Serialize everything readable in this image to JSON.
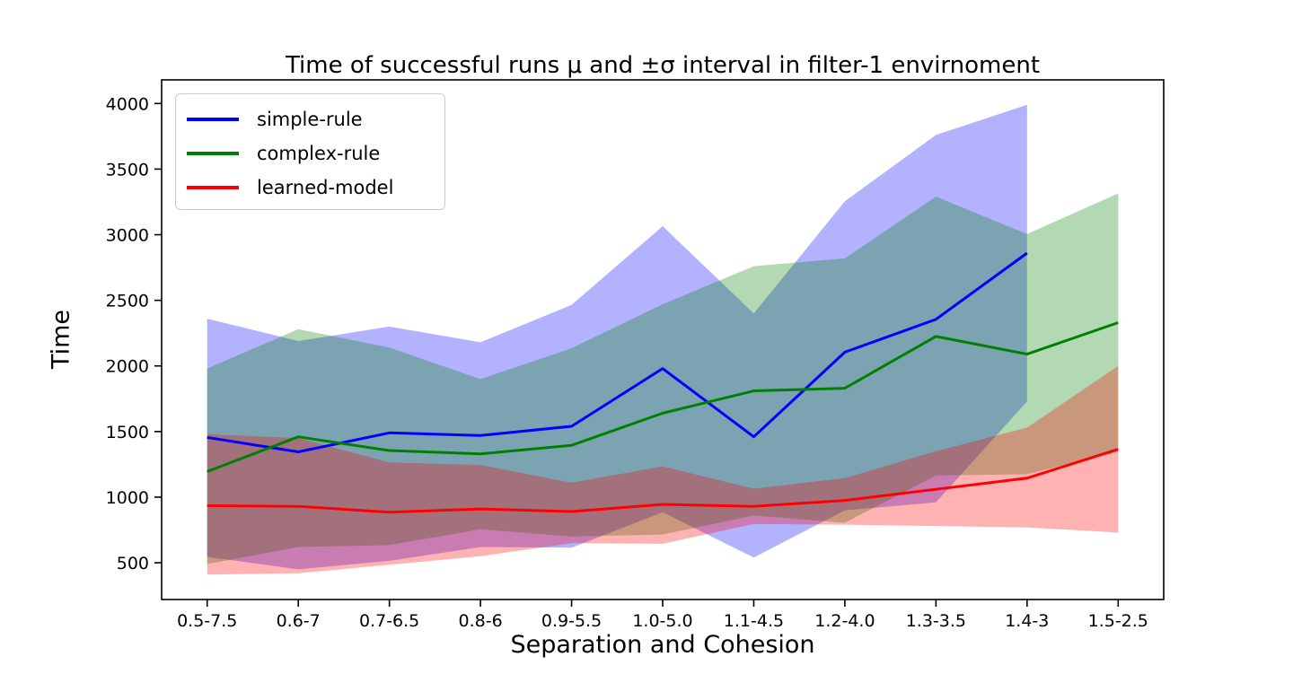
{
  "figure": {
    "title": "Time of successful runs μ and ±σ interval in filter-1 envirnoment",
    "xlabel": "Separation and Cohesion",
    "ylabel": "Time"
  },
  "chart_data": {
    "type": "line",
    "title": "Time of successful runs μ and ±σ interval in filter-1 envirnoment",
    "xlabel": "Separation and Cohesion",
    "ylabel": "Time",
    "categories": [
      "0.5-7.5",
      "0.6-7",
      "0.7-6.5",
      "0.8-6",
      "0.9-5.5",
      "1.0-5.0",
      "1.1-4.5",
      "1.2-4.0",
      "1.3-3.5",
      "1.4-3",
      "1.5-2.5"
    ],
    "yticks": [
      500,
      1000,
      1500,
      2000,
      2500,
      3000,
      3500,
      4000
    ],
    "ylim": [
      220,
      4180
    ],
    "grid": false,
    "legend_position": "upper-left",
    "band_meaning": "mean plus-minus one sigma, drawn with alpha 0.3",
    "series": [
      {
        "name": "simple-rule",
        "color": "#0000ff",
        "band_alpha": 0.3,
        "mean": [
          1455,
          1345,
          1490,
          1470,
          1540,
          1980,
          1460,
          2105,
          2355,
          2860,
          null
        ],
        "upper": [
          2360,
          2190,
          2300,
          2180,
          2465,
          3065,
          2400,
          3255,
          3760,
          3990,
          null
        ],
        "lower": [
          545,
          450,
          515,
          620,
          615,
          885,
          540,
          900,
          960,
          1730,
          null
        ]
      },
      {
        "name": "complex-rule",
        "color": "#008000",
        "band_alpha": 0.3,
        "mean": [
          1195,
          1460,
          1355,
          1330,
          1395,
          1640,
          1810,
          1830,
          2225,
          2090,
          2330
        ],
        "upper": [
          1980,
          2280,
          2140,
          1900,
          2135,
          2470,
          2760,
          2820,
          3290,
          3005,
          3315
        ],
        "lower": [
          490,
          620,
          635,
          755,
          700,
          715,
          860,
          805,
          1165,
          1175,
          1345
        ]
      },
      {
        "name": "learned-model",
        "color": "#ff0000",
        "band_alpha": 0.3,
        "mean": [
          935,
          930,
          885,
          910,
          890,
          945,
          930,
          975,
          1060,
          1145,
          1365
        ],
        "upper": [
          1480,
          1450,
          1265,
          1245,
          1110,
          1235,
          1065,
          1145,
          1350,
          1530,
          2000
        ],
        "lower": [
          410,
          420,
          485,
          550,
          650,
          645,
          795,
          790,
          780,
          770,
          730
        ]
      }
    ]
  }
}
